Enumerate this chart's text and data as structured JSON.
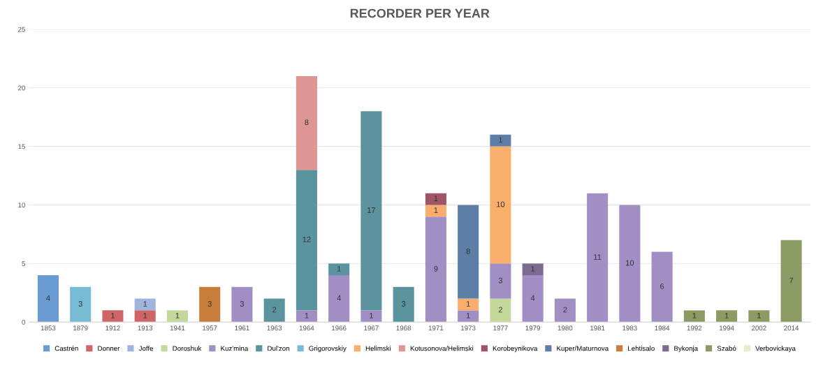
{
  "chart_data": {
    "type": "bar",
    "title": "RECORDER PER YEAR",
    "stacked": true,
    "data_labels": true,
    "grid": "y",
    "legend": "bottom",
    "ylim": [
      0,
      25
    ],
    "yticks": [
      0,
      5,
      10,
      15,
      20,
      25
    ],
    "categories": [
      "1853",
      "1879",
      "1912",
      "1913",
      "1941",
      "1957",
      "1961",
      "1963",
      "1964",
      "1966",
      "1967",
      "1968",
      "1971",
      "1973",
      "1977",
      "1979",
      "1980",
      "1981",
      "1983",
      "1984",
      "1992",
      "1994",
      "2002",
      "2014"
    ],
    "series": [
      {
        "name": "Castrén",
        "color": "#6a9bd2",
        "values": [
          4,
          null,
          null,
          null,
          null,
          null,
          null,
          null,
          null,
          null,
          null,
          null,
          null,
          null,
          null,
          null,
          null,
          null,
          null,
          null,
          null,
          null,
          null,
          null
        ]
      },
      {
        "name": "Donner",
        "color": "#d06565",
        "values": [
          null,
          null,
          1,
          1,
          null,
          null,
          null,
          null,
          null,
          null,
          null,
          null,
          null,
          null,
          null,
          null,
          null,
          null,
          null,
          null,
          null,
          null,
          null,
          null
        ]
      },
      {
        "name": "Joffe",
        "color": "#9fb5dc",
        "values": [
          null,
          null,
          null,
          1,
          null,
          null,
          null,
          null,
          null,
          null,
          null,
          null,
          null,
          null,
          null,
          null,
          null,
          null,
          null,
          null,
          null,
          null,
          null,
          null
        ]
      },
      {
        "name": "Doroshuk",
        "color": "#c3d89a",
        "values": [
          null,
          null,
          null,
          null,
          1,
          null,
          null,
          null,
          null,
          null,
          null,
          null,
          null,
          null,
          2,
          null,
          null,
          null,
          null,
          null,
          null,
          null,
          null,
          null
        ]
      },
      {
        "name": "Kuz'mina",
        "color": "#a08ec4",
        "values": [
          null,
          null,
          null,
          null,
          null,
          null,
          3,
          null,
          1,
          4,
          1,
          null,
          9,
          1,
          3,
          4,
          2,
          11,
          10,
          6,
          null,
          null,
          null,
          null
        ]
      },
      {
        "name": "Dul'zon",
        "color": "#5b939f",
        "values": [
          null,
          null,
          null,
          null,
          null,
          null,
          null,
          2,
          12,
          1,
          17,
          3,
          null,
          null,
          null,
          null,
          null,
          null,
          null,
          null,
          null,
          null,
          null,
          null
        ]
      },
      {
        "name": "Grigorovskiy",
        "color": "#77bcd4",
        "values": [
          null,
          3,
          null,
          null,
          null,
          null,
          null,
          null,
          null,
          null,
          null,
          null,
          null,
          null,
          null,
          null,
          null,
          null,
          null,
          null,
          null,
          null,
          null,
          null
        ]
      },
      {
        "name": "Helimski",
        "color": "#f9ae6b",
        "values": [
          null,
          null,
          null,
          null,
          null,
          null,
          null,
          null,
          null,
          null,
          null,
          null,
          1,
          1,
          10,
          null,
          null,
          null,
          null,
          null,
          null,
          null,
          null,
          null
        ]
      },
      {
        "name": "Kotusonova/Helimski",
        "color": "#e09595",
        "values": [
          null,
          null,
          null,
          null,
          null,
          null,
          null,
          null,
          8,
          null,
          null,
          null,
          null,
          null,
          null,
          null,
          null,
          null,
          null,
          null,
          null,
          null,
          null,
          null
        ]
      },
      {
        "name": "Korobeynikova",
        "color": "#a05468",
        "values": [
          null,
          null,
          null,
          null,
          null,
          null,
          null,
          null,
          null,
          null,
          null,
          null,
          1,
          null,
          null,
          null,
          null,
          null,
          null,
          null,
          null,
          null,
          null,
          null
        ]
      },
      {
        "name": "Kuper/Maturnova",
        "color": "#5d7ea6",
        "values": [
          null,
          null,
          null,
          null,
          null,
          null,
          null,
          null,
          null,
          null,
          null,
          null,
          null,
          8,
          1,
          null,
          null,
          null,
          null,
          null,
          null,
          null,
          null,
          null
        ]
      },
      {
        "name": "Lehtisalo",
        "color": "#c97d3b",
        "values": [
          null,
          null,
          null,
          null,
          null,
          3,
          null,
          null,
          null,
          null,
          null,
          null,
          null,
          null,
          null,
          null,
          null,
          null,
          null,
          null,
          null,
          null,
          null,
          null
        ]
      },
      {
        "name": "Bykonja",
        "color": "#7c6b90",
        "values": [
          null,
          null,
          null,
          null,
          null,
          null,
          null,
          null,
          null,
          null,
          null,
          null,
          null,
          null,
          null,
          1,
          null,
          null,
          null,
          null,
          null,
          null,
          null,
          null
        ]
      },
      {
        "name": "Szabó",
        "color": "#8b9b63",
        "values": [
          null,
          null,
          null,
          null,
          null,
          null,
          null,
          null,
          null,
          null,
          null,
          null,
          null,
          null,
          null,
          null,
          null,
          null,
          null,
          null,
          1,
          1,
          1,
          7
        ]
      },
      {
        "name": "Verbovickaya",
        "color": "#e8ecc8",
        "values": [
          null,
          null,
          null,
          null,
          null,
          null,
          null,
          null,
          null,
          null,
          null,
          null,
          null,
          null,
          null,
          null,
          null,
          null,
          null,
          null,
          null,
          null,
          null,
          null
        ]
      }
    ]
  }
}
